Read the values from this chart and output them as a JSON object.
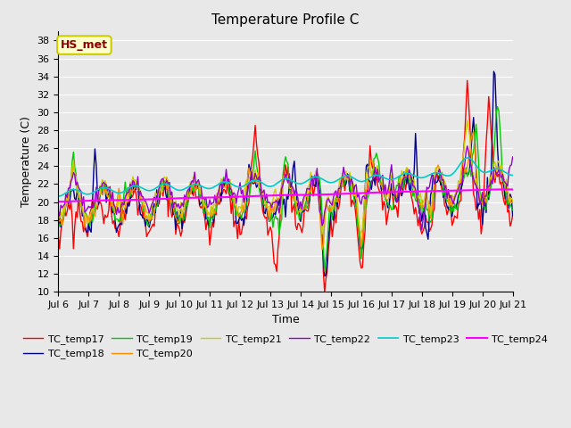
{
  "title": "Temperature Profile C",
  "xlabel": "Time",
  "ylabel": "Temperature (C)",
  "ylim": [
    10,
    39
  ],
  "yticks": [
    10,
    12,
    14,
    16,
    18,
    20,
    22,
    24,
    26,
    28,
    30,
    32,
    34,
    36,
    38
  ],
  "annotation_text": "HS_met",
  "annotation_color": "#8B0000",
  "annotation_bg": "#FFFFCC",
  "annotation_border": "#CCCC00",
  "plot_bg": "#E8E8E8",
  "fig_bg": "#E8E8E8",
  "series_colors": {
    "TC_temp17": "#FF0000",
    "TC_temp18": "#00008B",
    "TC_temp19": "#00CC00",
    "TC_temp20": "#FF8C00",
    "TC_temp21": "#CCCC00",
    "TC_temp22": "#9900CC",
    "TC_temp23": "#00CCCC",
    "TC_temp24": "#FF00FF"
  },
  "x_tick_labels": [
    "Jul 6",
    "Jul 7",
    "Jul 8",
    "Jul 9",
    "Jul 10",
    "Jul 11",
    "Jul 12",
    "Jul 13",
    "Jul 14",
    "Jul 15",
    "Jul 16",
    "Jul 17",
    "Jul 18",
    "Jul 19",
    "Jul 20",
    "Jul 21"
  ],
  "n_points": 361,
  "title_fontsize": 11,
  "label_fontsize": 9,
  "tick_fontsize": 8,
  "legend_fontsize": 8
}
